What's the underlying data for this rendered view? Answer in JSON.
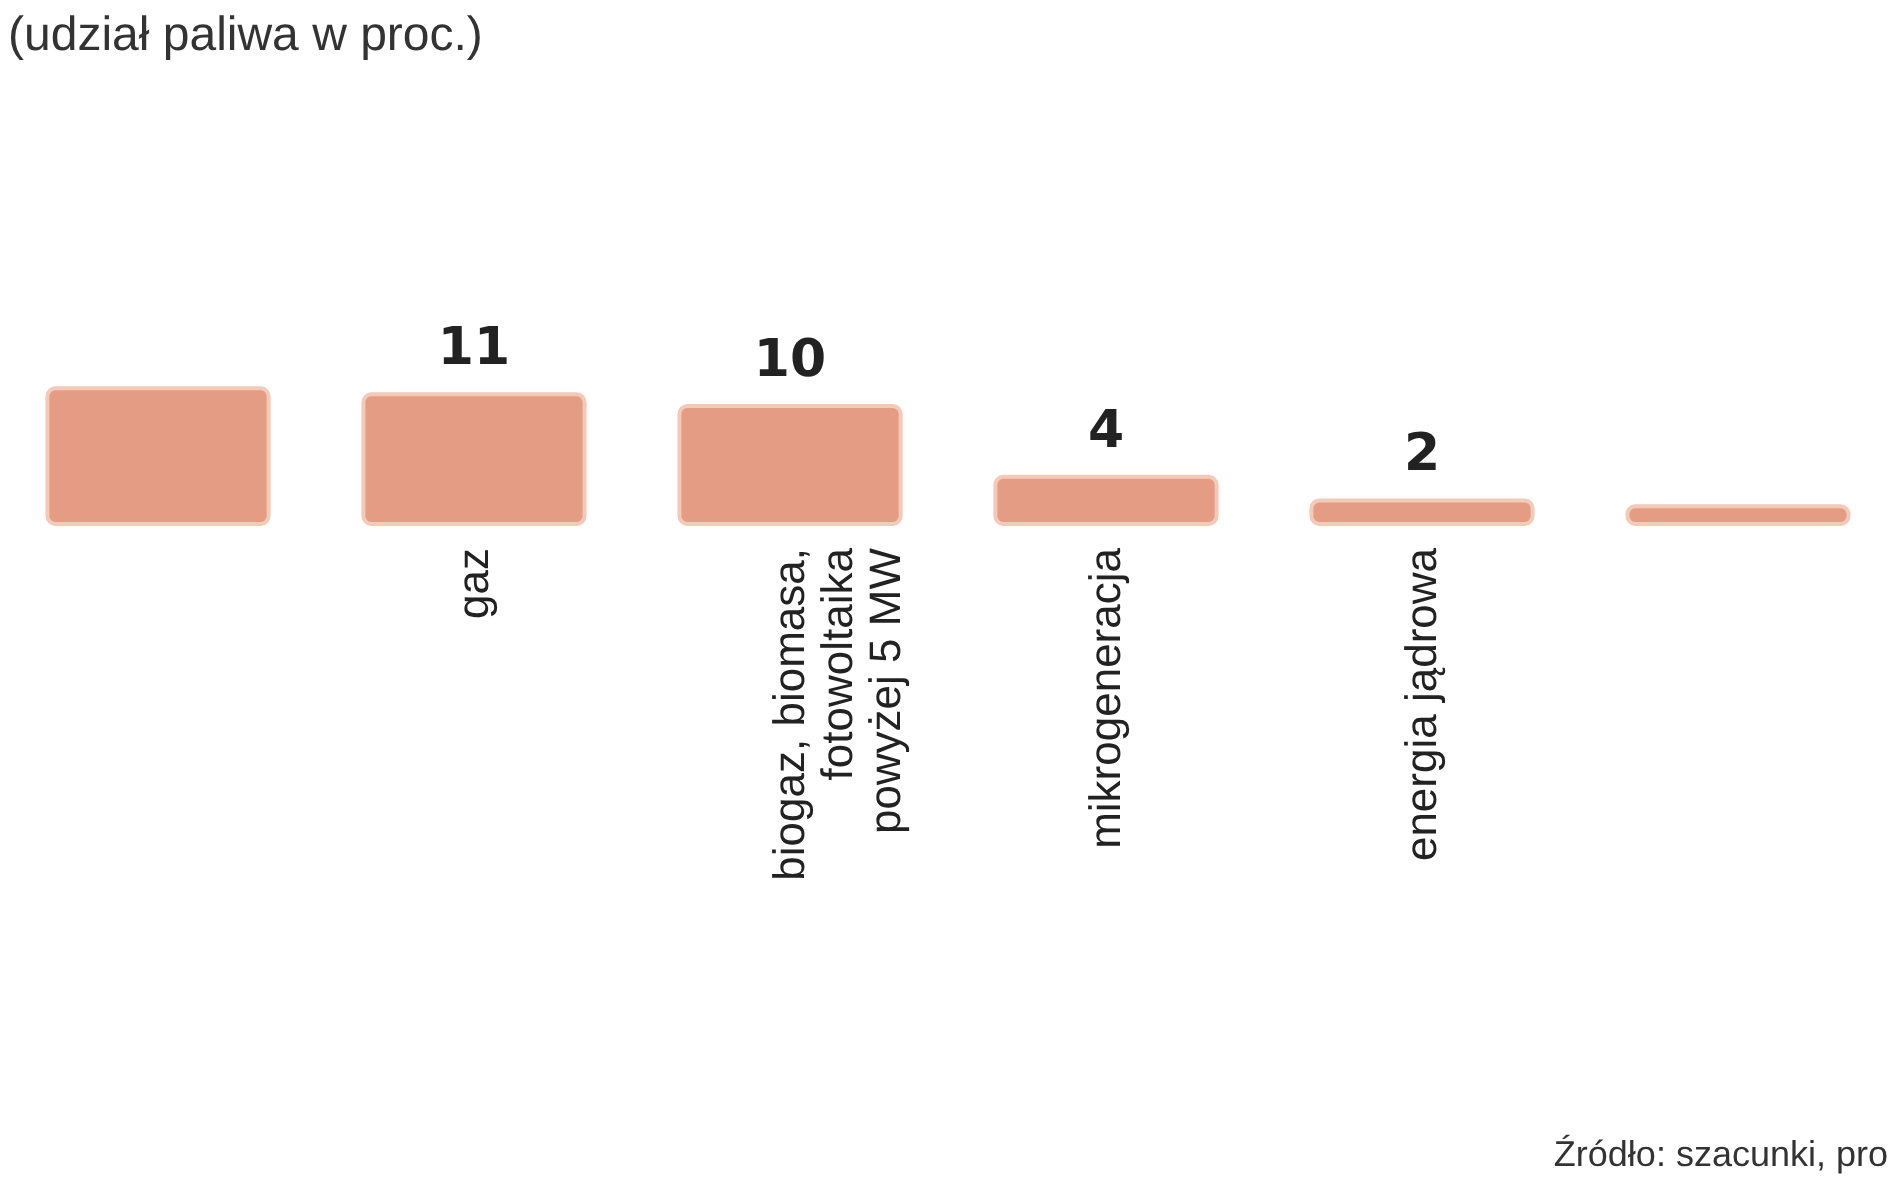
{
  "chart_data": {
    "type": "bar",
    "title": "(udział paliwa w proc.)",
    "categories": [
      null,
      "gaz",
      "biogaz, biomasa, fotowoltaika powyżej 5 MW",
      "mikrogeneracja",
      "energia jądrowa",
      null
    ],
    "values": [
      11.5,
      11,
      10,
      4,
      2,
      1.5
    ],
    "value_labels": [
      null,
      "11",
      "10",
      "4",
      "2",
      null
    ],
    "color": "#e59c84",
    "annotations": [
      "Źródło: szacunki, pro"
    ]
  }
}
